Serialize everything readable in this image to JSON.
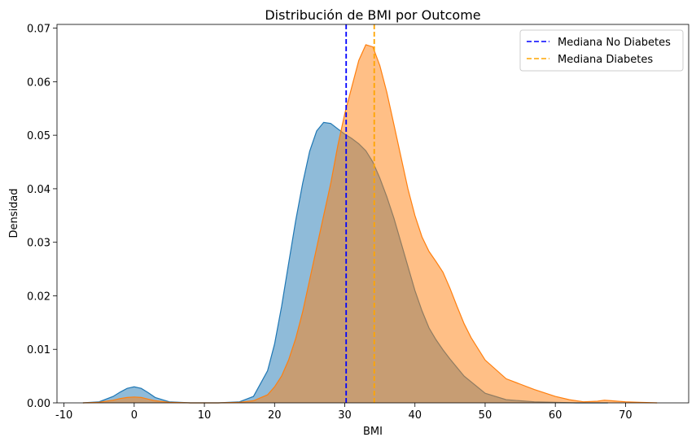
{
  "chart_data": {
    "type": "area",
    "title": "Distribución de BMI por Outcome",
    "xlabel": "BMI",
    "ylabel": "Densidad",
    "xlim": [
      -11,
      79
    ],
    "ylim": [
      0,
      0.0707
    ],
    "xticks": [
      -10,
      0,
      10,
      20,
      30,
      40,
      50,
      60,
      70
    ],
    "yticks": [
      0.0,
      0.01,
      0.02,
      0.03,
      0.04,
      0.05,
      0.06,
      0.07
    ],
    "ytick_labels": [
      "0.00",
      "0.01",
      "0.02",
      "0.03",
      "0.04",
      "0.05",
      "0.06",
      "0.07"
    ],
    "grid": false,
    "legend_position": "top-right",
    "legend": [
      {
        "label": "Mediana No Diabetes",
        "color": "#0000ff",
        "style": "dashed"
      },
      {
        "label": "Mediana Diabetes",
        "color": "#ffa500",
        "style": "dashed"
      }
    ],
    "series": [
      {
        "fill": "#1f77b4",
        "x": [
          -7.3,
          -5,
          -3,
          -2,
          -1,
          0,
          1,
          2,
          3,
          5,
          8,
          12,
          15,
          17,
          19,
          20,
          21,
          22,
          23,
          24,
          25,
          26,
          27,
          28,
          29,
          30,
          31,
          32,
          33,
          34,
          35,
          36,
          37,
          38,
          39,
          40,
          41,
          42,
          43,
          44,
          45,
          47,
          50,
          53,
          57,
          60,
          63,
          67.5
        ],
        "y": [
          0.0,
          0.0002,
          0.0012,
          0.002,
          0.0027,
          0.003,
          0.0027,
          0.0019,
          0.001,
          0.0002,
          0.0,
          0.0,
          0.0002,
          0.0012,
          0.006,
          0.011,
          0.018,
          0.026,
          0.034,
          0.041,
          0.047,
          0.0508,
          0.0524,
          0.0522,
          0.0512,
          0.0502,
          0.0494,
          0.0484,
          0.0471,
          0.045,
          0.042,
          0.0385,
          0.0345,
          0.03,
          0.0255,
          0.021,
          0.0172,
          0.014,
          0.0118,
          0.0099,
          0.0082,
          0.005,
          0.0018,
          0.0006,
          0.0002,
          0.0001,
          0.0,
          0.0
        ]
      },
      {
        "fill": "#ff7f0e",
        "x": [
          -7.3,
          -5,
          -3,
          -2,
          -1,
          0,
          1,
          2,
          3,
          5,
          8,
          12,
          15,
          17,
          19,
          20,
          21,
          22,
          23,
          24,
          25,
          26,
          27,
          28,
          29,
          30,
          31,
          32,
          33,
          34,
          35,
          36,
          37,
          38,
          39,
          40,
          41,
          42,
          43,
          44,
          45,
          46,
          47,
          48,
          50,
          53,
          55,
          57,
          60,
          62,
          64,
          66,
          67,
          68,
          70,
          72,
          74.5
        ],
        "y": [
          0.0,
          0.0001,
          0.0005,
          0.0008,
          0.001,
          0.0011,
          0.001,
          0.0007,
          0.0004,
          0.0001,
          0.0,
          0.0,
          0.0001,
          0.0004,
          0.0015,
          0.003,
          0.005,
          0.008,
          0.012,
          0.017,
          0.023,
          0.029,
          0.035,
          0.041,
          0.048,
          0.054,
          0.059,
          0.064,
          0.0669,
          0.0665,
          0.063,
          0.058,
          0.052,
          0.046,
          0.04,
          0.035,
          0.031,
          0.0283,
          0.0264,
          0.0244,
          0.0214,
          0.018,
          0.0148,
          0.0122,
          0.008,
          0.0045,
          0.0035,
          0.0025,
          0.0012,
          0.0006,
          0.0002,
          0.0003,
          0.0005,
          0.0004,
          0.0002,
          0.0001,
          0.0
        ]
      }
    ],
    "medians": [
      {
        "x": 30.2,
        "color": "#0000ff"
      },
      {
        "x": 34.2,
        "color": "#ffa500"
      }
    ]
  }
}
